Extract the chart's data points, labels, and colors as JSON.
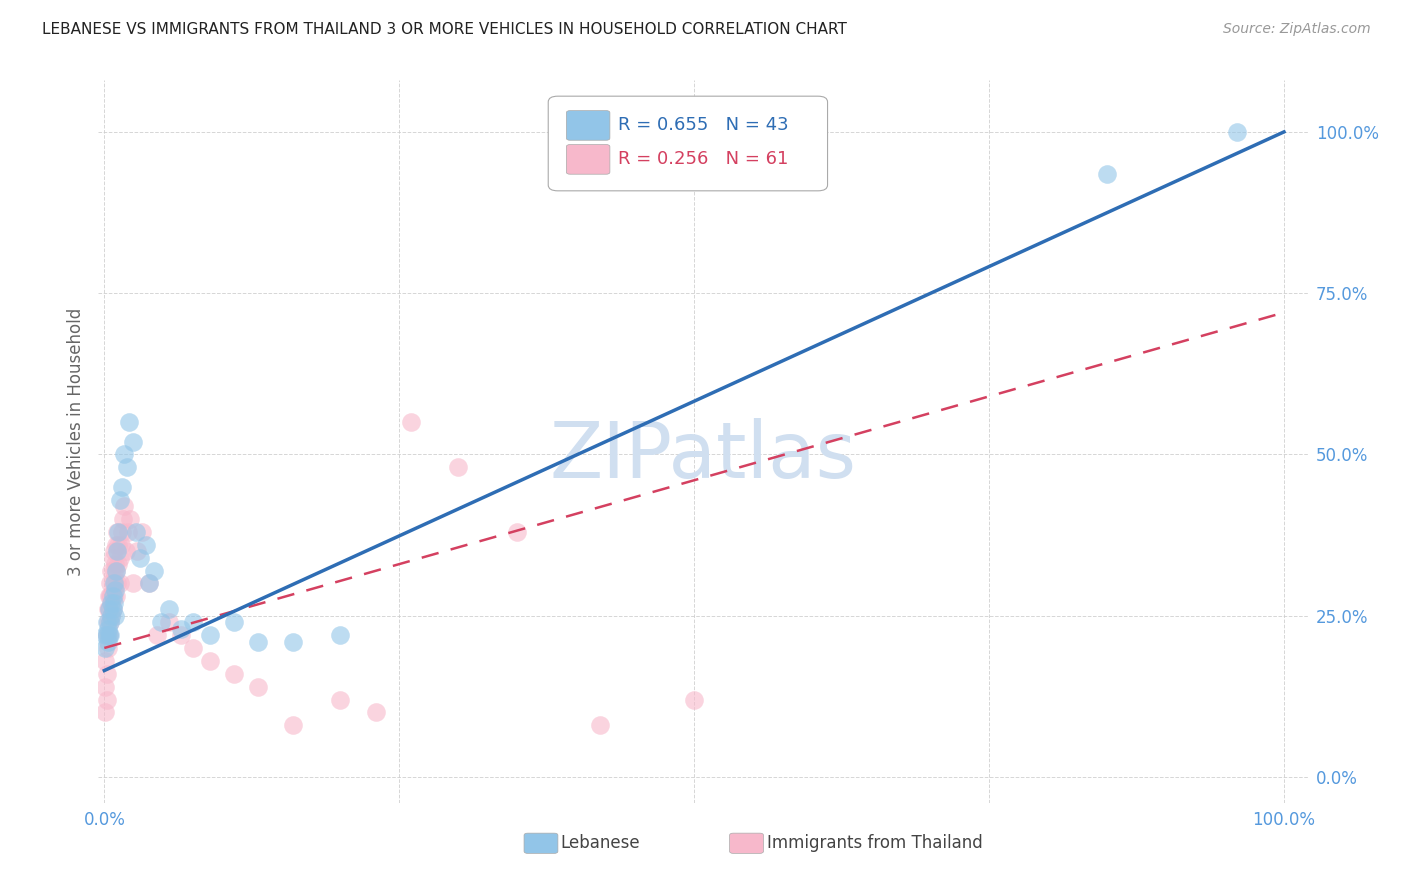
{
  "title": "LEBANESE VS IMMIGRANTS FROM THAILAND 3 OR MORE VEHICLES IN HOUSEHOLD CORRELATION CHART",
  "source": "Source: ZipAtlas.com",
  "ylabel": "3 or more Vehicles in Household",
  "blue_color": "#92c5e8",
  "pink_color": "#f7b8cb",
  "blue_line_color": "#2e6db4",
  "pink_line_color": "#d44060",
  "watermark_color": "#d0dff0",
  "background_color": "#ffffff",
  "grid_color": "#cccccc",
  "tick_color": "#5599dd",
  "ylabel_color": "#666666",
  "title_color": "#222222",
  "source_color": "#999999",
  "legend_text_blue": "R = 0.655   N = 43",
  "legend_text_pink": "R = 0.256   N = 61",
  "legend_label1": "Lebanese",
  "legend_label2": "Immigrants from Thailand",
  "blue_scatter_x": [
    0.001,
    0.001,
    0.002,
    0.002,
    0.003,
    0.003,
    0.004,
    0.004,
    0.005,
    0.005,
    0.006,
    0.006,
    0.007,
    0.007,
    0.008,
    0.008,
    0.009,
    0.009,
    0.01,
    0.011,
    0.012,
    0.013,
    0.015,
    0.017,
    0.019,
    0.021,
    0.024,
    0.027,
    0.03,
    0.035,
    0.038,
    0.042,
    0.048,
    0.055,
    0.065,
    0.075,
    0.09,
    0.11,
    0.13,
    0.16,
    0.2,
    0.85,
    0.96
  ],
  "blue_scatter_y": [
    0.22,
    0.2,
    0.24,
    0.22,
    0.23,
    0.21,
    0.22,
    0.26,
    0.24,
    0.22,
    0.27,
    0.25,
    0.28,
    0.26,
    0.3,
    0.27,
    0.29,
    0.25,
    0.32,
    0.35,
    0.38,
    0.43,
    0.45,
    0.5,
    0.48,
    0.55,
    0.52,
    0.38,
    0.34,
    0.36,
    0.3,
    0.32,
    0.24,
    0.26,
    0.23,
    0.24,
    0.22,
    0.24,
    0.21,
    0.21,
    0.22,
    0.935,
    1.0
  ],
  "pink_scatter_x": [
    0.001,
    0.001,
    0.001,
    0.002,
    0.002,
    0.002,
    0.003,
    0.003,
    0.003,
    0.004,
    0.004,
    0.004,
    0.005,
    0.005,
    0.005,
    0.006,
    0.006,
    0.006,
    0.007,
    0.007,
    0.007,
    0.008,
    0.008,
    0.008,
    0.009,
    0.009,
    0.01,
    0.01,
    0.01,
    0.011,
    0.011,
    0.012,
    0.012,
    0.013,
    0.013,
    0.014,
    0.015,
    0.016,
    0.017,
    0.018,
    0.02,
    0.022,
    0.024,
    0.028,
    0.032,
    0.038,
    0.045,
    0.055,
    0.065,
    0.075,
    0.09,
    0.11,
    0.13,
    0.16,
    0.2,
    0.23,
    0.26,
    0.3,
    0.35,
    0.42,
    0.5
  ],
  "pink_scatter_y": [
    0.1,
    0.14,
    0.18,
    0.12,
    0.16,
    0.22,
    0.2,
    0.24,
    0.26,
    0.22,
    0.26,
    0.28,
    0.24,
    0.28,
    0.3,
    0.25,
    0.28,
    0.32,
    0.26,
    0.3,
    0.34,
    0.28,
    0.32,
    0.35,
    0.3,
    0.33,
    0.28,
    0.32,
    0.36,
    0.3,
    0.38,
    0.33,
    0.36,
    0.3,
    0.34,
    0.36,
    0.38,
    0.4,
    0.42,
    0.35,
    0.38,
    0.4,
    0.3,
    0.35,
    0.38,
    0.3,
    0.22,
    0.24,
    0.22,
    0.2,
    0.18,
    0.16,
    0.14,
    0.08,
    0.12,
    0.1,
    0.55,
    0.48,
    0.38,
    0.08,
    0.12
  ],
  "blue_line_x0": 0.0,
  "blue_line_y0": 0.165,
  "blue_line_x1": 1.0,
  "blue_line_y1": 1.0,
  "pink_line_x0": 0.0,
  "pink_line_y0": 0.2,
  "pink_line_x1": 1.0,
  "pink_line_y1": 0.72,
  "xlim": [
    -0.005,
    1.02
  ],
  "ylim": [
    -0.04,
    1.08
  ],
  "xtick_pos": [
    0.0,
    0.25,
    0.5,
    0.75,
    1.0
  ],
  "xtick_labels": [
    "0.0%",
    "",
    "",
    "",
    "100.0%"
  ],
  "ytick_pos": [
    0.0,
    0.25,
    0.5,
    0.75,
    1.0
  ],
  "ytick_labels": [
    "0.0%",
    "25.0%",
    "50.0%",
    "75.0%",
    "100.0%"
  ]
}
